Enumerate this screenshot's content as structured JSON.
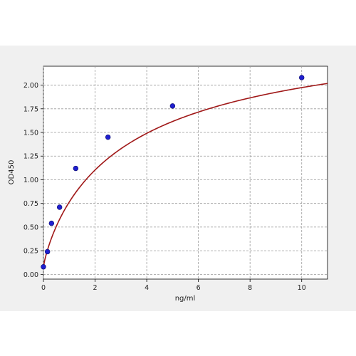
{
  "chart_data": {
    "type": "scatter",
    "title": "",
    "xlabel": "ng/ml",
    "ylabel": "OD450",
    "xlim": [
      0,
      11
    ],
    "ylim": [
      -0.05,
      2.2
    ],
    "x_ticks": [
      0,
      2,
      4,
      6,
      8,
      10
    ],
    "x_tick_labels": [
      "0",
      "2",
      "4",
      "6",
      "8",
      "10"
    ],
    "y_ticks": [
      0,
      0.25,
      0.5,
      0.75,
      1.0,
      1.25,
      1.5,
      1.75,
      2.0
    ],
    "y_tick_labels": [
      "0.00",
      "0.25",
      "0.50",
      "0.75",
      "1.00",
      "1.25",
      "1.50",
      "1.75",
      "2.00"
    ],
    "grid": true,
    "points": {
      "x": [
        0,
        0.156,
        0.3125,
        0.625,
        1.25,
        2.5,
        5,
        10
      ],
      "y": [
        0.08,
        0.24,
        0.54,
        0.71,
        1.12,
        1.45,
        1.78,
        2.08
      ],
      "color": "#1f1fcf"
    },
    "fit_curve": {
      "model": "4PL",
      "A": 0.08,
      "B": 0.85,
      "C": 3.5,
      "D": 2.75,
      "color": "#a01818"
    }
  }
}
